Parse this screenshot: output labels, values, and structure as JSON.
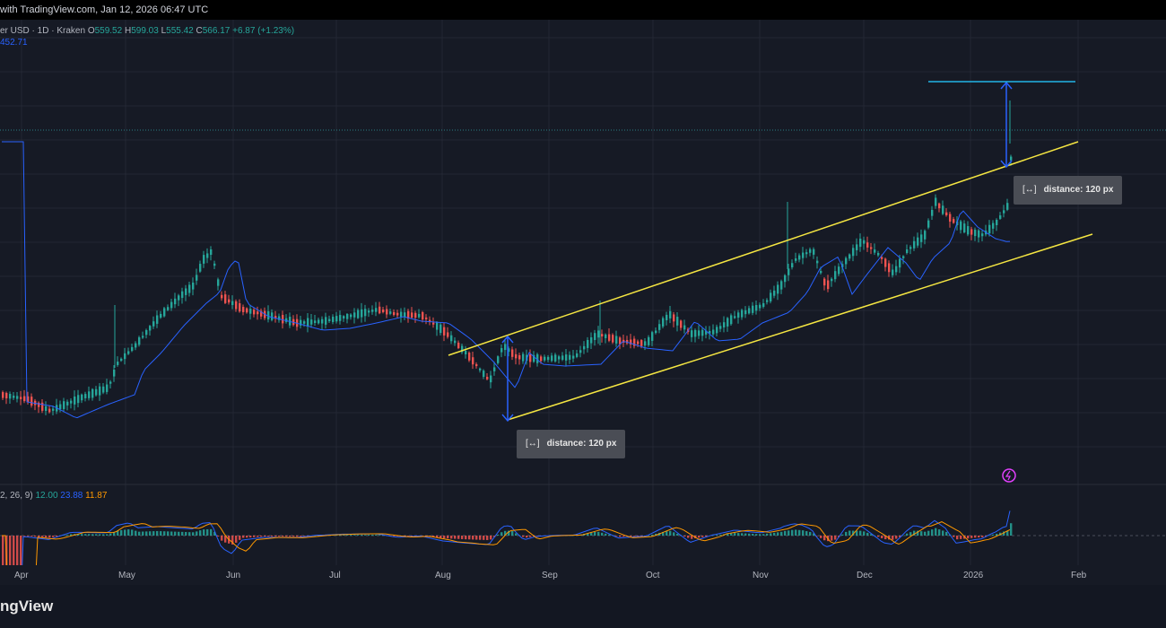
{
  "topbar": {
    "text": "with TradingView.com, Jan 12, 2026 06:47 UTC"
  },
  "legend": {
    "symbol": "er USD · 1D · Kraken",
    "o_label": "O",
    "o_value": "559.52",
    "h_label": "H",
    "h_value": "599.03",
    "l_label": "L",
    "l_value": "555.42",
    "c_label": "C",
    "c_value": "566.17",
    "change": "+6.87 (+1.23%)",
    "sma_value": "452.71"
  },
  "macd_legend": {
    "params": "2, 26, 9)",
    "macd": "12.00",
    "signal": "23.88",
    "hist": "11.87"
  },
  "tooltips": {
    "lower": {
      "label": "distance: 120 px"
    },
    "upper": {
      "label": "distance: 120 px"
    }
  },
  "x_axis": [
    "Apr",
    "May",
    "Jun",
    "Jul",
    "Aug",
    "Sep",
    "Oct",
    "Nov",
    "Dec",
    "2026",
    "Feb"
  ],
  "brand": "ngView",
  "colors": {
    "up": "#26a69a",
    "down": "#ef5350",
    "sma": "#2962ff",
    "channel": "#f5e642",
    "measure": "#2962ff",
    "target": "#22b5e6",
    "macd_line": "#2962ff",
    "signal_line": "#ff9800"
  },
  "chart_data": {
    "type": "candlestick",
    "x_axis_ticks": [
      "Apr",
      "May",
      "Jun",
      "Jul",
      "Aug",
      "Sep",
      "Oct",
      "Nov",
      "Dec",
      "2026",
      "Feb"
    ],
    "last_ohlc": {
      "open": 559.52,
      "high": 599.03,
      "low": 555.42,
      "close": 566.17,
      "change": 6.87,
      "change_pct": 1.23
    },
    "sma": 452.71,
    "macd": {
      "macd": 12.0,
      "signal": 23.88,
      "hist": 11.87
    },
    "grid": true,
    "annotations": [
      "parallel channel",
      "distance: 120 px",
      "distance: 120 px"
    ]
  }
}
